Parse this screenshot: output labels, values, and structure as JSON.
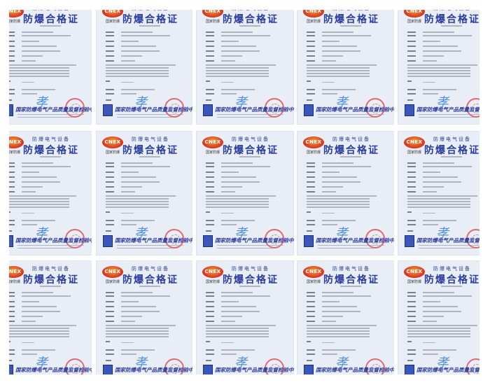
{
  "certificate": {
    "logo_text": "CNEX",
    "logo_subtext": "国家防爆",
    "header": "防爆电气设备",
    "title": "防爆合格证",
    "issuer": "国家防爆电气产品质量监督检验中心",
    "signature": "ࢦ"
  },
  "grid": {
    "columns": 5,
    "rows": 3
  },
  "colors": {
    "title": "#2a3d9c",
    "stamp": "#dc3c46",
    "background": "#e9eef6"
  }
}
